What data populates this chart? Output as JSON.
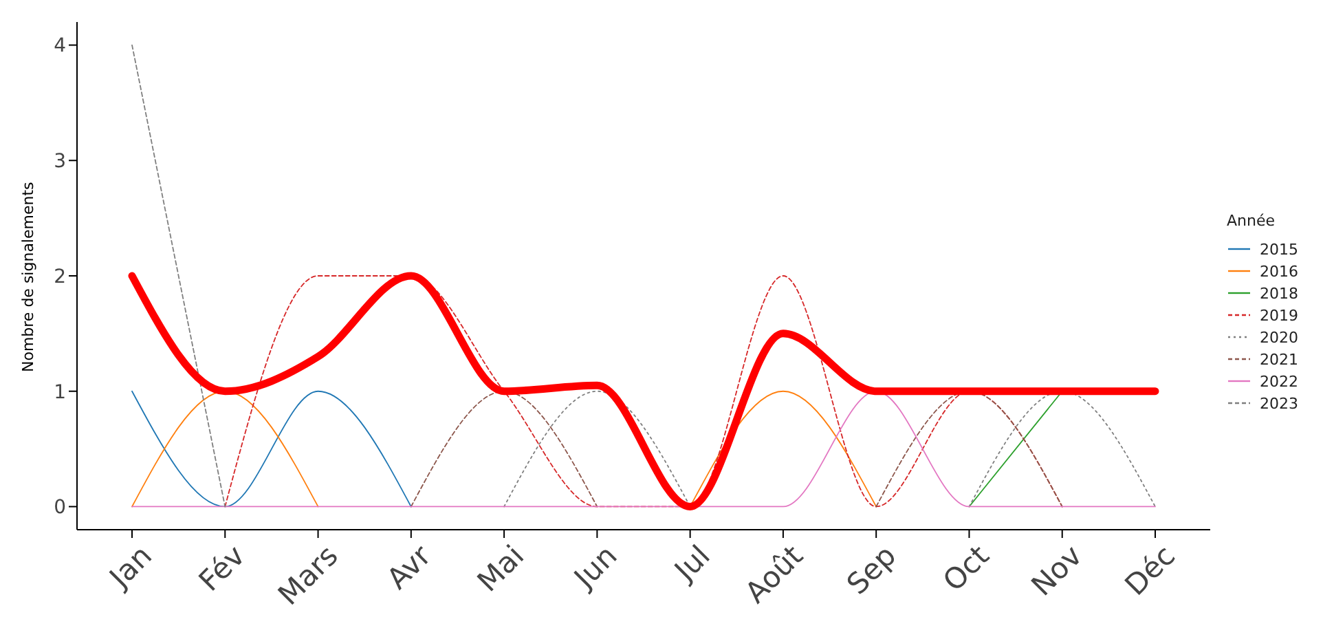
{
  "chart_data": {
    "type": "line",
    "ylabel": "Nombre de signalements",
    "legend_title": "Année",
    "categories": [
      "Jan",
      "Fév",
      "Mars",
      "Avr",
      "Mai",
      "Jun",
      "Jul",
      "Août",
      "Sep",
      "Oct",
      "Nov",
      "Déc"
    ],
    "series": [
      {
        "name": "2015",
        "color": "#1f77b4",
        "line_style": "solid",
        "values": [
          1,
          0,
          1,
          0,
          null,
          null,
          null,
          null,
          null,
          null,
          null,
          null
        ]
      },
      {
        "name": "2016",
        "color": "#ff7f0e",
        "line_style": "solid",
        "values": [
          0,
          1,
          0,
          null,
          null,
          null,
          0,
          1,
          0,
          null,
          null,
          null
        ]
      },
      {
        "name": "2018",
        "color": "#2ca02c",
        "line_style": "solid",
        "values": [
          null,
          null,
          null,
          null,
          null,
          null,
          null,
          null,
          null,
          0,
          1,
          null
        ]
      },
      {
        "name": "2019",
        "color": "#d62728",
        "line_style": "dashed",
        "values": [
          null,
          0,
          2,
          2,
          1,
          0,
          0,
          2,
          0,
          1,
          0,
          null
        ]
      },
      {
        "name": "2020",
        "color": "#7f7f7f",
        "line_style": "dotted",
        "values": [
          null,
          null,
          null,
          null,
          0,
          1,
          0,
          null,
          null,
          0,
          1,
          0
        ]
      },
      {
        "name": "2021",
        "color": "#8c564b",
        "line_style": "dashed",
        "values": [
          null,
          null,
          null,
          0,
          1,
          0,
          null,
          null,
          0,
          1,
          0,
          null
        ]
      },
      {
        "name": "2022",
        "color": "#e377c2",
        "line_style": "solid",
        "values": [
          0,
          0,
          0,
          0,
          0,
          0,
          0,
          0,
          1,
          0,
          0,
          0
        ]
      },
      {
        "name": "2023",
        "color": "#7f7f7f",
        "line_style": "dashed",
        "values": [
          4,
          0,
          null,
          null,
          null,
          null,
          null,
          null,
          null,
          null,
          null,
          null
        ]
      },
      {
        "color": "#ff0000",
        "line_style": "solid",
        "values": [
          2,
          1,
          1.3,
          2,
          1,
          1.05,
          0,
          1.5,
          1,
          1,
          1,
          1
        ]
      }
    ],
    "ylim": [
      -0.2,
      4.2
    ],
    "yticks": [
      0,
      1,
      2,
      3,
      4
    ],
    "grid": false,
    "legend": "right",
    "marker": "none"
  }
}
